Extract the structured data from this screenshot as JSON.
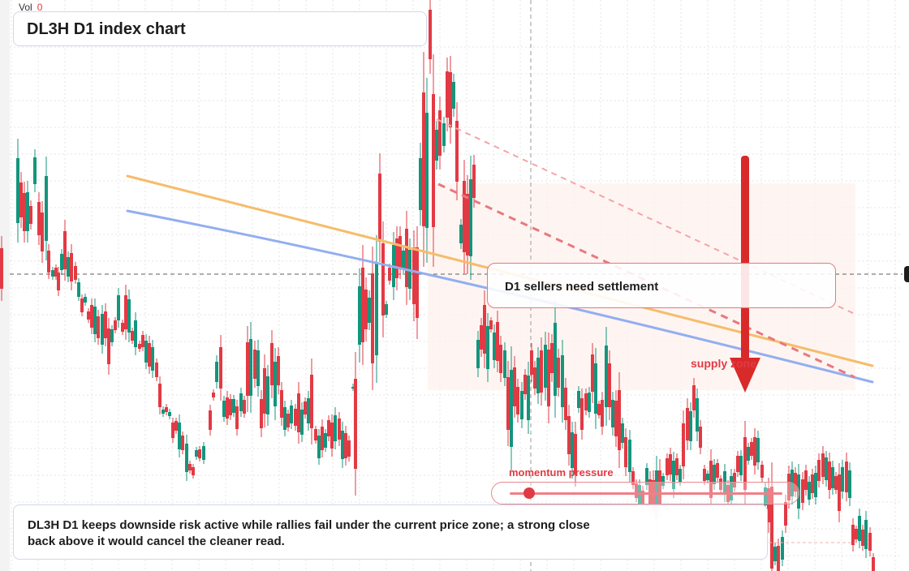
{
  "volume": {
    "label": "Vol",
    "value": "0"
  },
  "title": "DL3H D1 index chart",
  "callout": {
    "text": "D1 sellers need settlement"
  },
  "supply_label": "supply zone",
  "momentum": {
    "label": "momentum pressure",
    "level": 0.07
  },
  "commentary": "DL3H D1 keeps downside risk active while rallies fail under the current price zone; a strong close back above it would cancel the cleaner read.",
  "colors": {
    "bull": "#14957c",
    "bear": "#e23a44",
    "trend_orange": "#f5bd6a",
    "trend_blue": "#93aef0",
    "arrow": "#d92a2a",
    "zone": "#fdf2ee"
  },
  "chart_data": {
    "type": "candlestick",
    "timeframe": "D1",
    "candles": [
      [
        0,
        306,
        356
      ],
      [
        20,
        195,
        275
      ],
      [
        24,
        225,
        268
      ],
      [
        28,
        238,
        285
      ],
      [
        32,
        237,
        285
      ],
      [
        36,
        254,
        276
      ],
      [
        41,
        194,
        227
      ],
      [
        46,
        249,
        290
      ],
      [
        50,
        262,
        310
      ],
      [
        55,
        217,
        297
      ],
      [
        58,
        309,
        336
      ],
      [
        63,
        333,
        341
      ],
      [
        67,
        330,
        341
      ],
      [
        70,
        336,
        358
      ],
      [
        74,
        313,
        333
      ],
      [
        78,
        285,
        332
      ],
      [
        82,
        317,
        341
      ],
      [
        86,
        312,
        347
      ],
      [
        91,
        328,
        345
      ],
      [
        95,
        348,
        366
      ],
      [
        99,
        368,
        385
      ],
      [
        103,
        366,
        373
      ],
      [
        107,
        384,
        394
      ],
      [
        111,
        376,
        404
      ],
      [
        115,
        378,
        412
      ],
      [
        119,
        390,
        417
      ],
      [
        124,
        387,
        425
      ],
      [
        128,
        384,
        417
      ],
      [
        132,
        405,
        449
      ],
      [
        136,
        406,
        422
      ],
      [
        140,
        395,
        407
      ],
      [
        144,
        364,
        395
      ],
      [
        149,
        398,
        409
      ],
      [
        153,
        364,
        406
      ],
      [
        157,
        369,
        410
      ],
      [
        161,
        408,
        420
      ],
      [
        165,
        395,
        428
      ],
      [
        170,
        424,
        430
      ],
      [
        174,
        413,
        428
      ],
      [
        178,
        420,
        447
      ],
      [
        182,
        423,
        452
      ],
      [
        186,
        428,
        457
      ],
      [
        191,
        447,
        465
      ],
      [
        195,
        473,
        502
      ],
      [
        199,
        505,
        510
      ],
      [
        203,
        502,
        508
      ],
      [
        207,
        508,
        513
      ],
      [
        211,
        521,
        540
      ],
      [
        215,
        519,
        531
      ],
      [
        219,
        521,
        554
      ],
      [
        223,
        537,
        555
      ],
      [
        228,
        547,
        582
      ],
      [
        232,
        572,
        580
      ],
      [
        236,
        576,
        586
      ],
      [
        240,
        555,
        563
      ],
      [
        244,
        554,
        565
      ],
      [
        249,
        550,
        567
      ],
      [
        257,
        506,
        530
      ],
      [
        261,
        484,
        490
      ],
      [
        265,
        446,
        471
      ],
      [
        270,
        428,
        479
      ],
      [
        274,
        494,
        514
      ],
      [
        278,
        490,
        516
      ],
      [
        282,
        492,
        512
      ],
      [
        286,
        492,
        509
      ],
      [
        290,
        501,
        529
      ],
      [
        295,
        485,
        507
      ],
      [
        299,
        493,
        510
      ],
      [
        303,
        422,
        488
      ],
      [
        307,
        418,
        488
      ],
      [
        312,
        431,
        467
      ],
      [
        316,
        432,
        476
      ],
      [
        320,
        492,
        528
      ],
      [
        324,
        454,
        510
      ],
      [
        328,
        464,
        511
      ],
      [
        333,
        423,
        475
      ],
      [
        337,
        446,
        501
      ],
      [
        341,
        439,
        475
      ],
      [
        345,
        481,
        515
      ],
      [
        349,
        502,
        530
      ],
      [
        353,
        510,
        527
      ],
      [
        357,
        500,
        522
      ],
      [
        362,
        504,
        525
      ],
      [
        366,
        485,
        533
      ],
      [
        370,
        505,
        536
      ],
      [
        374,
        495,
        511
      ],
      [
        378,
        491,
        522
      ],
      [
        382,
        462,
        528
      ],
      [
        387,
        529,
        543
      ],
      [
        391,
        537,
        565
      ],
      [
        395,
        526,
        555
      ],
      [
        399,
        534,
        552
      ],
      [
        403,
        518,
        538
      ],
      [
        407,
        521,
        553
      ],
      [
        411,
        512,
        544
      ],
      [
        416,
        516,
        542
      ],
      [
        420,
        531,
        566
      ],
      [
        424,
        534,
        565
      ],
      [
        428,
        543,
        563
      ],
      [
        433,
        477,
        478
      ],
      [
        436,
        467,
        578
      ],
      [
        441,
        353,
        425
      ],
      [
        445,
        330,
        422
      ],
      [
        449,
        357,
        406
      ],
      [
        453,
        367,
        398
      ],
      [
        457,
        337,
        448
      ],
      [
        462,
        324,
        438
      ],
      [
        466,
        214,
        298
      ],
      [
        470,
        300,
        389
      ],
      [
        474,
        375,
        388
      ],
      [
        478,
        330,
        346
      ],
      [
        483,
        302,
        354
      ],
      [
        487,
        294,
        343
      ],
      [
        491,
        291,
        332
      ],
      [
        495,
        309,
        332
      ],
      [
        499,
        282,
        354
      ],
      [
        503,
        308,
        356
      ],
      [
        508,
        305,
        375
      ],
      [
        512,
        305,
        392
      ],
      [
        516,
        195,
        259
      ],
      [
        520,
        114,
        279
      ],
      [
        524,
        139,
        281
      ],
      [
        528,
        12,
        73
      ],
      [
        532,
        116,
        280
      ],
      [
        536,
        160,
        198
      ],
      [
        540,
        136,
        192
      ],
      [
        545,
        152,
        180
      ],
      [
        549,
        88,
        145
      ],
      [
        553,
        89,
        157
      ],
      [
        557,
        101,
        134
      ],
      [
        561,
        149,
        224
      ],
      [
        566,
        277,
        300
      ],
      [
        570,
        223,
        311
      ],
      [
        574,
        239,
        315
      ],
      [
        578,
        221,
        316
      ],
      [
        582,
        203,
        244
      ],
      [
        587,
        419,
        454
      ],
      [
        591,
        401,
        431
      ],
      [
        595,
        376,
        436
      ],
      [
        599,
        402,
        455
      ],
      [
        603,
        395,
        406
      ],
      [
        607,
        410,
        444
      ],
      [
        611,
        397,
        445
      ],
      [
        615,
        425,
        460
      ],
      [
        620,
        432,
        466
      ],
      [
        624,
        465,
        530
      ],
      [
        628,
        456,
        551
      ],
      [
        632,
        453,
        501
      ],
      [
        636,
        477,
        511
      ],
      [
        641,
        482,
        517
      ],
      [
        645,
        462,
        486
      ],
      [
        649,
        463,
        518
      ],
      [
        653,
        432,
        462
      ],
      [
        657,
        453,
        479
      ],
      [
        661,
        441,
        485
      ],
      [
        665,
        432,
        484
      ],
      [
        670,
        425,
        478
      ],
      [
        674,
        431,
        501
      ],
      [
        678,
        423,
        460
      ],
      [
        682,
        398,
        488
      ],
      [
        686,
        441,
        478
      ],
      [
        691,
        438,
        502
      ],
      [
        695,
        478,
        518
      ],
      [
        699,
        513,
        560
      ],
      [
        703,
        533,
        577
      ],
      [
        707,
        535,
        585
      ],
      [
        711,
        482,
        503
      ],
      [
        715,
        491,
        530
      ],
      [
        720,
        485,
        506
      ],
      [
        724,
        484,
        508
      ],
      [
        728,
        437,
        483
      ],
      [
        732,
        448,
        510
      ],
      [
        736,
        498,
        512
      ],
      [
        740,
        493,
        526
      ],
      [
        745,
        426,
        502
      ],
      [
        749,
        448,
        502
      ],
      [
        753,
        493,
        527
      ],
      [
        757,
        494,
        538
      ],
      [
        761,
        481,
        555
      ],
      [
        765,
        522,
        546
      ],
      [
        769,
        539,
        576
      ],
      [
        774,
        542,
        582
      ],
      [
        778,
        581,
        598
      ],
      [
        782,
        596,
        614
      ],
      [
        786,
        598,
        622
      ],
      [
        790,
        605,
        626
      ],
      [
        795,
        577,
        598
      ],
      [
        799,
        591,
        625
      ],
      [
        803,
        592,
        631
      ],
      [
        807,
        580,
        640
      ],
      [
        811,
        580,
        625
      ],
      [
        815,
        587,
        599
      ],
      [
        820,
        565,
        586
      ],
      [
        824,
        560,
        585
      ],
      [
        828,
        568,
        603
      ],
      [
        832,
        565,
        586
      ],
      [
        836,
        578,
        594
      ],
      [
        840,
        522,
        575
      ],
      [
        845,
        503,
        543
      ],
      [
        849,
        507,
        544
      ],
      [
        853,
        475,
        506
      ],
      [
        857,
        491,
        532
      ],
      [
        861,
        526,
        552
      ],
      [
        866,
        578,
        593
      ],
      [
        870,
        584,
        592
      ],
      [
        874,
        568,
        614
      ],
      [
        878,
        573,
        597
      ],
      [
        882,
        571,
        589
      ],
      [
        886,
        590,
        604
      ],
      [
        891,
        581,
        610
      ],
      [
        895,
        598,
        619
      ],
      [
        899,
        587,
        617
      ],
      [
        903,
        583,
        601
      ],
      [
        907,
        562,
        582
      ],
      [
        911,
        562,
        586
      ],
      [
        916,
        539,
        604
      ],
      [
        920,
        551,
        568
      ],
      [
        924,
        545,
        562
      ],
      [
        928,
        539,
        574
      ],
      [
        932,
        540,
        570
      ],
      [
        937,
        573,
        589
      ],
      [
        941,
        601,
        623
      ],
      [
        945,
        602,
        644
      ],
      [
        949,
        600,
        701
      ],
      [
        953,
        674,
        692
      ],
      [
        957,
        673,
        704
      ],
      [
        962,
        662,
        690
      ],
      [
        966,
        619,
        648
      ],
      [
        970,
        584,
        617
      ],
      [
        974,
        579,
        612
      ],
      [
        978,
        583,
        606
      ],
      [
        982,
        585,
        627
      ],
      [
        987,
        591,
        620
      ],
      [
        991,
        580,
        604
      ],
      [
        995,
        594,
        616
      ],
      [
        999,
        585,
        608
      ],
      [
        1003,
        583,
        613
      ],
      [
        1007,
        567,
        593
      ],
      [
        1012,
        559,
        588
      ],
      [
        1016,
        564,
        592
      ],
      [
        1020,
        569,
        604
      ],
      [
        1024,
        576,
        602
      ],
      [
        1028,
        587,
        604
      ],
      [
        1032,
        585,
        630
      ],
      [
        1036,
        576,
        606
      ],
      [
        1041,
        569,
        607
      ],
      [
        1045,
        580,
        614
      ],
      [
        1049,
        647,
        672
      ],
      [
        1053,
        652,
        665
      ],
      [
        1057,
        636,
        667
      ],
      [
        1061,
        653,
        673
      ],
      [
        1065,
        641,
        677
      ],
      [
        1070,
        657,
        679
      ],
      [
        1074,
        687,
        704
      ]
    ]
  }
}
